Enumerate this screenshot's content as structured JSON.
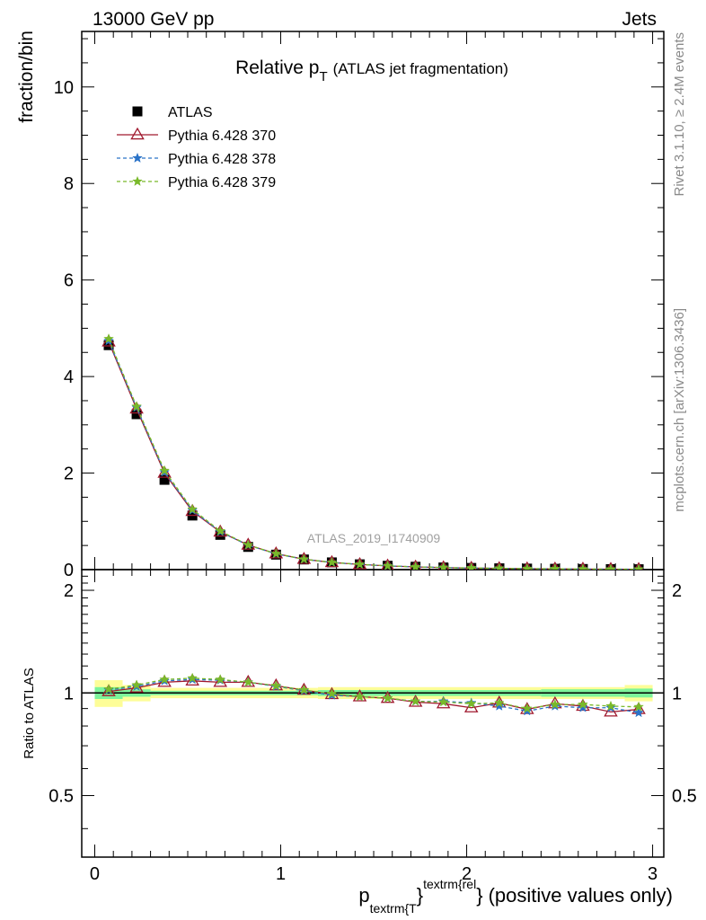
{
  "header": {
    "left": "13000 GeV pp",
    "right": "Jets"
  },
  "title": {
    "main": "Relative p",
    "sub": "T",
    "suffix": "(ATLAS jet fragmentation)"
  },
  "side_labels": {
    "rivet": "Rivet 3.1.10, ≥ 2.4M events",
    "mcplots": "mcplots.cern.ch [arXiv:1306.3436]"
  },
  "watermark": "ATLAS_2019_I1740909",
  "colors": {
    "data": "#000000",
    "p370": "#a0192e",
    "p378": "#2a73c8",
    "p379": "#79b92a",
    "band_inner": "#7cf49a",
    "band_outer": "#fdfd98"
  },
  "chart_data": {
    "type": "line",
    "xlabel": {
      "p": "p",
      "sub": "textrm{T",
      "sup": "textrm{rel",
      "brace1": "}",
      "brace2": "}",
      "suffix": "(positive values only)"
    },
    "ylabel_main": "fraction/bin",
    "ylabel_ratio": "Ratio to ATLAS",
    "xlim": [
      -0.07,
      3.06
    ],
    "ylim_main": [
      0,
      11.15
    ],
    "ylim_ratio": [
      0.33,
      2.3
    ],
    "ratio_log": true,
    "x_ticks": [
      {
        "v": 0,
        "label": "0"
      },
      {
        "v": 1,
        "label": "1"
      },
      {
        "v": 2,
        "label": "2"
      },
      {
        "v": 3,
        "label": "3"
      }
    ],
    "y_ticks_main": [
      {
        "v": 0,
        "label": "0"
      },
      {
        "v": 2,
        "label": "2"
      },
      {
        "v": 4,
        "label": "4"
      },
      {
        "v": 6,
        "label": "6"
      },
      {
        "v": 8,
        "label": "8"
      },
      {
        "v": 10,
        "label": "10"
      }
    ],
    "y_ticks_ratio": [
      {
        "v": 0.5,
        "label": "0.5"
      },
      {
        "v": 1,
        "label": "1"
      },
      {
        "v": 2,
        "label": "2"
      }
    ],
    "x": [
      0.075,
      0.225,
      0.375,
      0.525,
      0.675,
      0.825,
      0.975,
      1.125,
      1.275,
      1.425,
      1.575,
      1.725,
      1.875,
      2.025,
      2.175,
      2.325,
      2.475,
      2.625,
      2.775,
      2.925
    ],
    "series": [
      {
        "name": "ATLAS",
        "key": "atlas",
        "values": [
          4.65,
          3.22,
          1.86,
          1.12,
          0.72,
          0.47,
          0.31,
          0.21,
          0.15,
          0.11,
          0.08,
          0.06,
          0.045,
          0.035,
          0.027,
          0.021,
          0.017,
          0.013,
          0.01,
          0.008
        ],
        "ratio": [
          1,
          1,
          1,
          1,
          1,
          1,
          1,
          1,
          1,
          1,
          1,
          1,
          1,
          1,
          1,
          1,
          1,
          1,
          1,
          1
        ]
      },
      {
        "name": "Pythia 6.428 370",
        "key": "p370",
        "values": [
          4.72,
          3.33,
          2.0,
          1.21,
          0.78,
          0.51,
          0.33,
          0.215,
          0.148,
          0.107,
          0.077,
          0.056,
          0.042,
          0.032,
          0.025,
          0.019,
          0.016,
          0.012,
          0.009,
          0.007
        ],
        "ratio": [
          1.01,
          1.035,
          1.075,
          1.085,
          1.075,
          1.075,
          1.05,
          1.02,
          0.99,
          0.975,
          0.965,
          0.94,
          0.93,
          0.905,
          0.935,
          0.895,
          0.93,
          0.915,
          0.88,
          0.895
        ]
      },
      {
        "name": "Pythia 6.428 378",
        "key": "p378",
        "values": [
          4.74,
          3.36,
          2.02,
          1.23,
          0.785,
          0.505,
          0.325,
          0.214,
          0.149,
          0.107,
          0.077,
          0.057,
          0.043,
          0.033,
          0.025,
          0.019,
          0.016,
          0.012,
          0.009,
          0.007
        ],
        "ratio": [
          1.02,
          1.045,
          1.085,
          1.095,
          1.09,
          1.075,
          1.045,
          1.015,
          0.985,
          0.975,
          0.965,
          0.945,
          0.945,
          0.935,
          0.915,
          0.885,
          0.915,
          0.905,
          0.905,
          0.875
        ]
      },
      {
        "name": "Pythia 6.428 379",
        "key": "p379",
        "values": [
          4.78,
          3.38,
          2.05,
          1.25,
          0.8,
          0.51,
          0.33,
          0.215,
          0.15,
          0.108,
          0.078,
          0.057,
          0.043,
          0.033,
          0.026,
          0.02,
          0.016,
          0.012,
          0.009,
          0.008
        ],
        "ratio": [
          1.025,
          1.055,
          1.095,
          1.105,
          1.095,
          1.075,
          1.05,
          1.02,
          0.995,
          0.975,
          0.965,
          0.945,
          0.94,
          0.93,
          0.935,
          0.9,
          0.925,
          0.925,
          0.915,
          0.91
        ]
      }
    ],
    "band_outer": [
      [
        0.0,
        0.15,
        0.09
      ],
      [
        0.15,
        0.3,
        0.055
      ],
      [
        0.3,
        1.2,
        0.035
      ],
      [
        1.2,
        2.4,
        0.04
      ],
      [
        2.4,
        2.85,
        0.04
      ],
      [
        2.85,
        3.0,
        0.055
      ]
    ],
    "band_inner": [
      [
        0.0,
        0.15,
        0.04
      ],
      [
        0.15,
        0.3,
        0.025
      ],
      [
        0.3,
        1.2,
        0.015
      ],
      [
        1.2,
        2.4,
        0.02
      ],
      [
        2.4,
        2.85,
        0.025
      ],
      [
        2.85,
        3.0,
        0.03
      ]
    ]
  }
}
